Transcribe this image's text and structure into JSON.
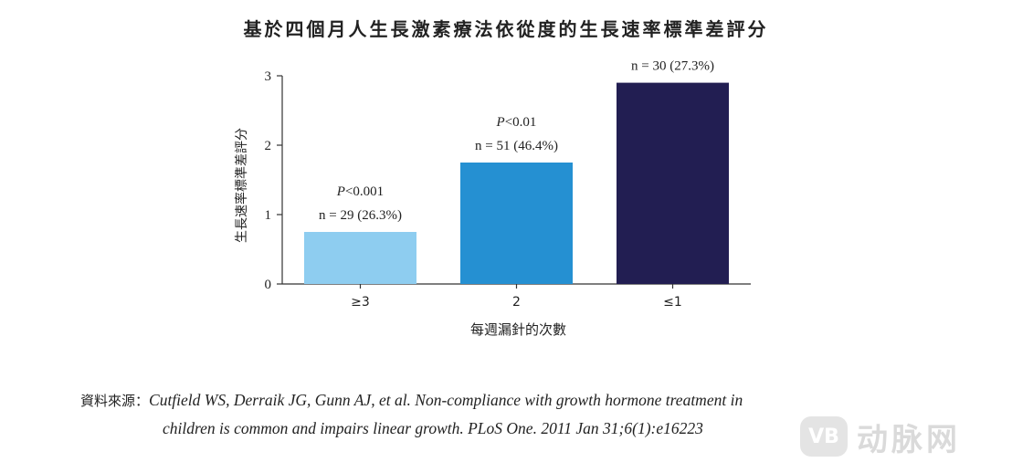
{
  "chart_data": {
    "type": "bar",
    "title": "基於四個月人生長激素療法依從度的生長速率標準差評分",
    "xlabel": "每週漏針的次數",
    "ylabel": "生長速率標準差評分",
    "categories": [
      "≥3",
      "2",
      "≤1"
    ],
    "values": [
      0.75,
      1.75,
      2.9
    ],
    "colors": [
      "#8ecdf0",
      "#2590d2",
      "#221e52"
    ],
    "annotations": [
      {
        "p": "P<0.001",
        "n": "n = 29 (26.3%)"
      },
      {
        "p": "P<0.01",
        "n": "n = 51 (46.4%)"
      },
      {
        "p": "",
        "n": "n = 30 (27.3%)"
      }
    ],
    "ylim": [
      0,
      3
    ],
    "yticks": [
      "0",
      "1",
      "2",
      "3"
    ],
    "grid": false,
    "legend": "none"
  },
  "source": {
    "label": "資料來源：",
    "line1": "Cutfield WS, Derraik JG, Gunn AJ, et al. Non-compliance with growth hormone treatment in",
    "line2": "children is common and impairs linear growth. PLoS One. 2011 Jan 31;6(1):e16223"
  },
  "watermark": {
    "logo": "VB",
    "text": "动脉网"
  }
}
